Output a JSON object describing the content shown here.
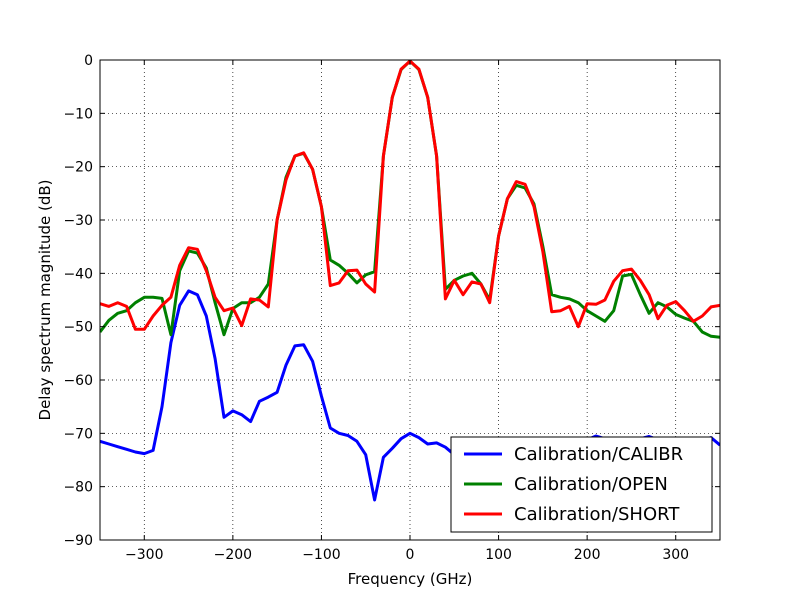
{
  "chart_data": {
    "type": "line",
    "xlabel": "Frequency (GHz)",
    "ylabel": "Delay spectrum magnitude (dB)",
    "xlim": [
      -350,
      350
    ],
    "ylim": [
      -90,
      0
    ],
    "xticks": [
      -300,
      -200,
      -100,
      0,
      100,
      200,
      300
    ],
    "xtick_labels": [
      "−300",
      "−200",
      "−100",
      "0",
      "100",
      "200",
      "300"
    ],
    "yticks": [
      0,
      -10,
      -20,
      -30,
      -40,
      -50,
      -60,
      -70,
      -80,
      -90
    ],
    "ytick_labels": [
      "0",
      "−10",
      "−20",
      "−30",
      "−40",
      "−50",
      "−60",
      "−70",
      "−80",
      "−90"
    ],
    "grid": true,
    "legend_position": "lower-right",
    "series": [
      {
        "name": "Calibration/CALIBR",
        "color": "#0000ff",
        "x": [
          -350,
          -340,
          -330,
          -320,
          -310,
          -300,
          -290,
          -280,
          -270,
          -260,
          -250,
          -240,
          -230,
          -220,
          -210,
          -200,
          -190,
          -180,
          -170,
          -160,
          -150,
          -140,
          -130,
          -120,
          -110,
          -100,
          -90,
          -80,
          -70,
          -60,
          -50,
          -40,
          -30,
          -20,
          -10,
          0,
          10,
          20,
          30,
          40,
          50,
          60,
          70,
          80,
          90,
          100,
          110,
          120,
          130,
          140,
          150,
          160,
          170,
          180,
          190,
          200,
          210,
          220,
          230,
          240,
          250,
          260,
          270,
          280,
          290,
          300,
          310,
          320,
          330,
          340,
          350
        ],
        "y": [
          -71.5,
          -72,
          -72.5,
          -73,
          -73.5,
          -73.8,
          -73.2,
          -65,
          -53,
          -46,
          -43.3,
          -44,
          -48,
          -56,
          -67,
          -65.8,
          -66.5,
          -67.8,
          -64,
          -63.2,
          -62.3,
          -57.2,
          -53.6,
          -53.4,
          -56.5,
          -63,
          -69,
          -70,
          -70.4,
          -71.5,
          -74,
          -82.5,
          -74.5,
          -72.8,
          -71,
          -70,
          -70.8,
          -72,
          -71.8,
          -72.6,
          -74,
          -74.5,
          -74.8,
          -75,
          -75.2,
          -75.3,
          -75.2,
          -75,
          -74.8,
          -74.6,
          -74.4,
          -74,
          -73.5,
          -72.6,
          -71.8,
          -71.2,
          -70.5,
          -71,
          -71.5,
          -71.7,
          -72,
          -71,
          -70.6,
          -71.2,
          -71.8,
          -72,
          -71.5,
          -71,
          -71.2,
          -70.8,
          -72.2
        ]
      },
      {
        "name": "Calibration/OPEN",
        "color": "#008000",
        "x": [
          -350,
          -340,
          -330,
          -320,
          -310,
          -300,
          -290,
          -280,
          -270,
          -260,
          -250,
          -240,
          -230,
          -220,
          -210,
          -200,
          -190,
          -180,
          -170,
          -160,
          -150,
          -140,
          -130,
          -120,
          -110,
          -100,
          -90,
          -80,
          -70,
          -60,
          -50,
          -40,
          -30,
          -20,
          -10,
          0,
          10,
          20,
          30,
          40,
          50,
          60,
          70,
          80,
          90,
          100,
          110,
          120,
          130,
          140,
          150,
          160,
          170,
          180,
          190,
          200,
          210,
          220,
          230,
          240,
          250,
          260,
          270,
          280,
          290,
          300,
          310,
          320,
          330,
          340,
          350
        ],
        "y": [
          -51,
          -48.8,
          -47.5,
          -47,
          -45.5,
          -44.5,
          -44.5,
          -44.7,
          -51.5,
          -39.5,
          -35.8,
          -36.2,
          -39,
          -45.5,
          -51.5,
          -46.6,
          -45.5,
          -45.5,
          -44.5,
          -42,
          -30,
          -22,
          -18,
          -17.5,
          -20.5,
          -27.5,
          -37.5,
          -38.5,
          -40,
          -41.8,
          -40.3,
          -39.7,
          -18,
          -7,
          -1.8,
          -0.2,
          -1.8,
          -7,
          -18,
          -43,
          -41.3,
          -40.5,
          -40,
          -42,
          -45,
          -33,
          -26,
          -23.5,
          -24,
          -27,
          -35,
          -44,
          -44.5,
          -44.8,
          -45.5,
          -47,
          -48,
          -49,
          -47,
          -40.5,
          -40.2,
          -44,
          -47.5,
          -45.5,
          -46.3,
          -47.7,
          -48.4,
          -49,
          -51,
          -51.8,
          -52
        ]
      },
      {
        "name": "Calibration/SHORT",
        "color": "#ff0000",
        "x": [
          -350,
          -340,
          -330,
          -320,
          -310,
          -300,
          -290,
          -280,
          -270,
          -260,
          -250,
          -240,
          -230,
          -220,
          -210,
          -200,
          -190,
          -180,
          -170,
          -160,
          -150,
          -140,
          -130,
          -120,
          -110,
          -100,
          -90,
          -80,
          -70,
          -60,
          -50,
          -40,
          -30,
          -20,
          -10,
          0,
          10,
          20,
          30,
          40,
          50,
          60,
          70,
          80,
          90,
          100,
          110,
          120,
          130,
          140,
          150,
          160,
          170,
          180,
          190,
          200,
          210,
          220,
          230,
          240,
          250,
          260,
          270,
          280,
          290,
          300,
          310,
          320,
          330,
          340,
          350
        ],
        "y": [
          -45.7,
          -46.2,
          -45.5,
          -46.2,
          -50.5,
          -50.5,
          -48,
          -46,
          -44.5,
          -38.5,
          -35.2,
          -35.5,
          -39.5,
          -44.5,
          -47,
          -46.5,
          -49.8,
          -44.8,
          -45,
          -46.3,
          -30,
          -22.5,
          -18,
          -17.4,
          -20.5,
          -27.5,
          -42.3,
          -41.8,
          -39.5,
          -39.4,
          -42,
          -43.5,
          -18,
          -7,
          -1.7,
          -0.2,
          -1.7,
          -7,
          -18,
          -44.8,
          -41.3,
          -44,
          -41.6,
          -42,
          -45.5,
          -33,
          -26,
          -22.8,
          -23.3,
          -27.5,
          -36,
          -47.2,
          -47,
          -46.2,
          -50,
          -45.7,
          -45.8,
          -45,
          -41.5,
          -39.5,
          -39.2,
          -41.3,
          -44,
          -48.5,
          -46,
          -45.3,
          -47,
          -49,
          -48,
          -46.3,
          -46
        ]
      }
    ]
  }
}
